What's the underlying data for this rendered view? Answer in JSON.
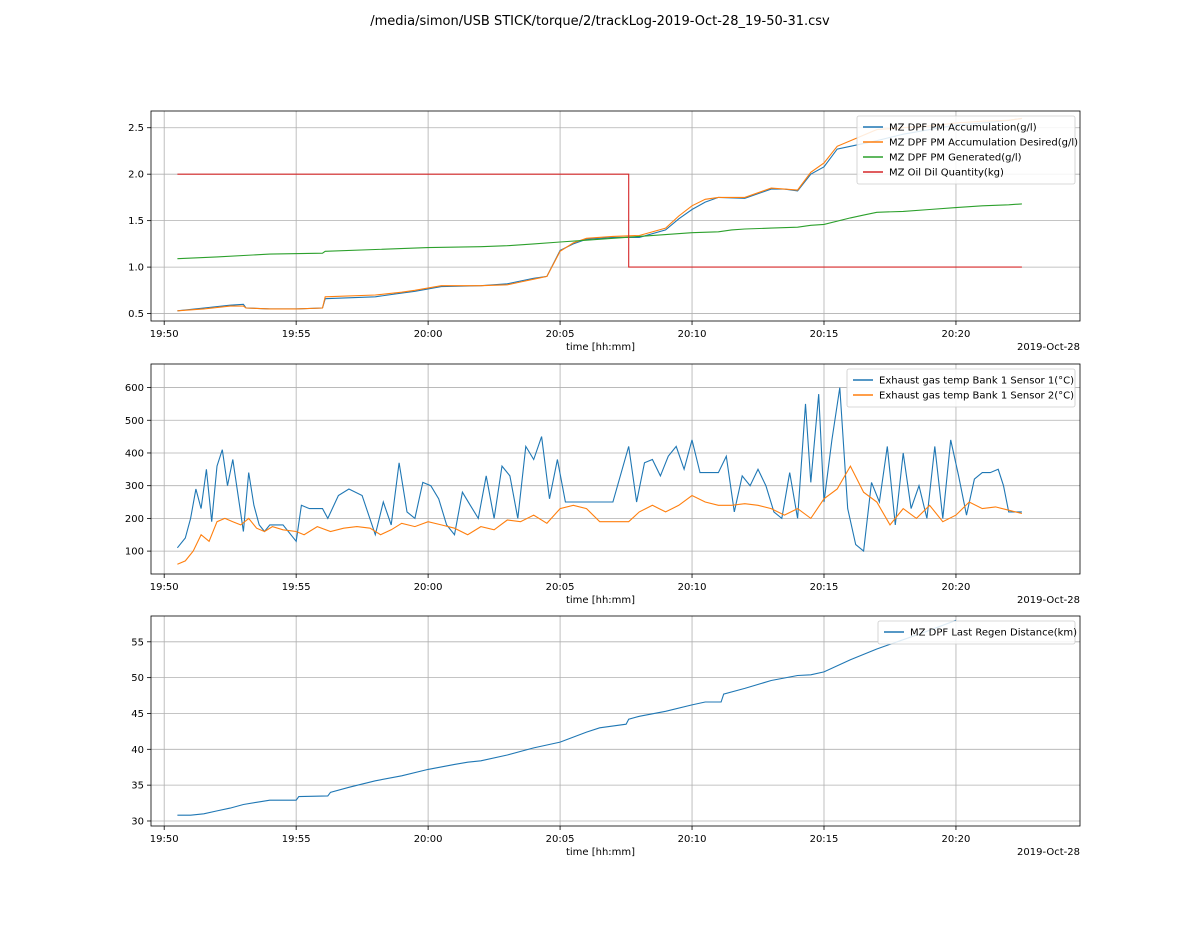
{
  "figure": {
    "title": "/media/simon/USB STICK/torque/2/trackLog-2019-Oct-28_19-50-31.csv"
  },
  "chart_data": [
    {
      "type": "line",
      "xlabel": "time [hh:mm]",
      "x_offset_label": "2019-Oct-28",
      "x_ticks": [
        "19:50",
        "19:55",
        "20:00",
        "20:05",
        "20:10",
        "20:15",
        "20:20"
      ],
      "x_tick_minutes": [
        0,
        5,
        10,
        15,
        20,
        25,
        30
      ],
      "xlim": [
        -0.5,
        34.7
      ],
      "ylim": [
        0.42,
        2.68
      ],
      "y_ticks": [
        0.5,
        1.0,
        1.5,
        2.0,
        2.5
      ],
      "y_tick_labels": [
        "0.5",
        "1.0",
        "1.5",
        "2.0",
        "2.5"
      ],
      "grid": true,
      "legend": "top-right",
      "series": [
        {
          "name": "MZ DPF PM Accumulation(g/l)",
          "color": "#1f77b4",
          "x": [
            0.5,
            1.5,
            2.5,
            3,
            3.1,
            4,
            5,
            6,
            6.1,
            8,
            9,
            9.5,
            10.5,
            12,
            13,
            13.5,
            14,
            14.5,
            15,
            15.5,
            16,
            17,
            18,
            19,
            19.5,
            20,
            20.5,
            21,
            22,
            23,
            23.5,
            24,
            24.5,
            25,
            25.5,
            26,
            27,
            28,
            29,
            30,
            31,
            32,
            32.5
          ],
          "y": [
            0.53,
            0.56,
            0.59,
            0.6,
            0.56,
            0.55,
            0.55,
            0.56,
            0.66,
            0.68,
            0.72,
            0.74,
            0.79,
            0.8,
            0.82,
            0.85,
            0.88,
            0.9,
            1.18,
            1.25,
            1.3,
            1.32,
            1.32,
            1.4,
            1.52,
            1.62,
            1.7,
            1.75,
            1.74,
            1.84,
            1.84,
            1.82,
            2.0,
            2.08,
            2.27,
            2.3,
            2.36,
            2.43,
            2.48,
            2.53,
            2.55,
            2.58,
            2.6
          ]
        },
        {
          "name": "MZ DPF PM Accumulation Desired(g/l)",
          "color": "#ff7f0e",
          "x": [
            0.5,
            1.5,
            2.5,
            3,
            3.1,
            4,
            5,
            6,
            6.1,
            8,
            9,
            9.5,
            10.5,
            12,
            13,
            13.5,
            14,
            14.5,
            15,
            15.5,
            16,
            17,
            18,
            19,
            19.5,
            20,
            20.5,
            21,
            22,
            23,
            23.5,
            24,
            24.5,
            25,
            25.5,
            26,
            27,
            28,
            29,
            30,
            31,
            32,
            32.5
          ],
          "y": [
            0.53,
            0.55,
            0.58,
            0.58,
            0.56,
            0.55,
            0.55,
            0.56,
            0.68,
            0.7,
            0.73,
            0.75,
            0.8,
            0.8,
            0.81,
            0.84,
            0.87,
            0.9,
            1.17,
            1.26,
            1.31,
            1.33,
            1.34,
            1.42,
            1.55,
            1.66,
            1.73,
            1.75,
            1.75,
            1.85,
            1.84,
            1.83,
            2.02,
            2.12,
            2.3,
            2.36,
            2.48,
            2.5,
            2.52,
            2.55,
            2.57,
            2.58,
            2.6
          ]
        },
        {
          "name": "MZ DPF PM Generated(g/l)",
          "color": "#2ca02c",
          "x": [
            0.5,
            2,
            4,
            6,
            6.1,
            8,
            10,
            12,
            13,
            14,
            15,
            16,
            17,
            18,
            19,
            20,
            21,
            21.5,
            22,
            23,
            24,
            24.5,
            25,
            26,
            26.5,
            27,
            28,
            29,
            30,
            31,
            32,
            32.5
          ],
          "y": [
            1.09,
            1.11,
            1.14,
            1.15,
            1.17,
            1.19,
            1.21,
            1.22,
            1.23,
            1.25,
            1.27,
            1.29,
            1.31,
            1.33,
            1.35,
            1.37,
            1.38,
            1.4,
            1.41,
            1.42,
            1.43,
            1.45,
            1.46,
            1.53,
            1.56,
            1.59,
            1.6,
            1.62,
            1.64,
            1.66,
            1.67,
            1.68
          ]
        },
        {
          "name": "MZ Oil Dil Quantity(kg)",
          "color": "#d62728",
          "x": [
            0.5,
            17.6,
            17.6,
            32.5
          ],
          "y": [
            2.0,
            2.0,
            1.0,
            1.0
          ]
        }
      ]
    },
    {
      "type": "line",
      "xlabel": "time [hh:mm]",
      "x_offset_label": "2019-Oct-28",
      "x_ticks": [
        "19:50",
        "19:55",
        "20:00",
        "20:05",
        "20:10",
        "20:15",
        "20:20"
      ],
      "x_tick_minutes": [
        0,
        5,
        10,
        15,
        20,
        25,
        30
      ],
      "xlim": [
        -0.5,
        34.7
      ],
      "ylim": [
        30,
        672
      ],
      "y_ticks": [
        100,
        200,
        300,
        400,
        500,
        600
      ],
      "y_tick_labels": [
        "100",
        "200",
        "300",
        "400",
        "500",
        "600"
      ],
      "grid": true,
      "legend": "top-right",
      "series": [
        {
          "name": "Exhaust gas temp Bank 1 Sensor 1(°C)",
          "color": "#1f77b4",
          "x": [
            0.5,
            0.8,
            1.0,
            1.2,
            1.4,
            1.6,
            1.8,
            2.0,
            2.2,
            2.4,
            2.6,
            2.8,
            3.0,
            3.2,
            3.4,
            3.6,
            3.8,
            4.0,
            4.5,
            5.0,
            5.2,
            5.5,
            6.0,
            6.2,
            6.6,
            7.0,
            7.5,
            8.0,
            8.3,
            8.6,
            8.9,
            9.2,
            9.5,
            9.8,
            10.1,
            10.4,
            10.7,
            11.0,
            11.3,
            11.6,
            11.9,
            12.2,
            12.5,
            12.8,
            13.1,
            13.4,
            13.7,
            14.0,
            14.3,
            14.6,
            14.9,
            15.2,
            15.5,
            15.8,
            16.1,
            16.4,
            16.7,
            17.0,
            17.6,
            17.9,
            18.2,
            18.5,
            18.8,
            19.1,
            19.4,
            19.7,
            20.0,
            20.3,
            21.0,
            21.3,
            21.6,
            21.9,
            22.2,
            22.5,
            22.8,
            23.1,
            23.4,
            23.7,
            24.0,
            24.3,
            24.5,
            24.8,
            25.0,
            25.3,
            25.6,
            25.9,
            26.2,
            26.5,
            26.8,
            27.1,
            27.4,
            27.7,
            28.0,
            28.3,
            28.6,
            28.9,
            29.2,
            29.5,
            29.8,
            30.1,
            30.4,
            30.7,
            31.0,
            31.3,
            31.6,
            31.8,
            32.0,
            32.5
          ],
          "y": [
            110,
            140,
            200,
            290,
            230,
            350,
            190,
            360,
            410,
            300,
            380,
            270,
            160,
            340,
            240,
            180,
            160,
            180,
            180,
            130,
            240,
            230,
            230,
            200,
            270,
            290,
            270,
            150,
            250,
            180,
            370,
            220,
            200,
            310,
            300,
            260,
            180,
            150,
            280,
            240,
            200,
            330,
            200,
            360,
            330,
            200,
            420,
            380,
            450,
            260,
            380,
            250,
            250,
            250,
            250,
            250,
            250,
            250,
            420,
            250,
            370,
            380,
            330,
            390,
            420,
            350,
            440,
            340,
            340,
            390,
            220,
            330,
            300,
            350,
            300,
            220,
            200,
            340,
            200,
            550,
            310,
            580,
            250,
            440,
            600,
            230,
            120,
            100,
            310,
            250,
            420,
            180,
            400,
            230,
            300,
            200,
            420,
            200,
            440,
            330,
            210,
            320,
            340,
            340,
            350,
            300,
            220,
            220
          ]
        },
        {
          "name": "Exhaust gas temp Bank 1 Sensor 2(°C)",
          "color": "#ff7f0e",
          "x": [
            0.5,
            0.8,
            1.1,
            1.4,
            1.7,
            2.0,
            2.3,
            2.6,
            2.9,
            3.2,
            3.5,
            3.8,
            4.1,
            4.5,
            5.0,
            5.3,
            5.8,
            6.3,
            6.8,
            7.3,
            7.8,
            8.2,
            8.6,
            9.0,
            9.5,
            10.0,
            10.5,
            11.0,
            11.5,
            12.0,
            12.5,
            13.0,
            13.5,
            14.0,
            14.5,
            15.0,
            15.5,
            16.0,
            16.5,
            17.0,
            17.6,
            18.0,
            18.5,
            19.0,
            19.5,
            20.0,
            20.5,
            21.0,
            21.5,
            22.0,
            22.5,
            23.0,
            23.5,
            24.0,
            24.5,
            25.0,
            25.5,
            26.0,
            26.5,
            27.0,
            27.5,
            28.0,
            28.5,
            29.0,
            29.5,
            30.0,
            30.5,
            31.0,
            31.5,
            32.0,
            32.5
          ],
          "y": [
            60,
            70,
            100,
            150,
            130,
            190,
            200,
            190,
            180,
            200,
            170,
            160,
            175,
            165,
            160,
            150,
            175,
            160,
            170,
            175,
            170,
            150,
            165,
            185,
            175,
            190,
            180,
            170,
            150,
            175,
            165,
            195,
            190,
            210,
            185,
            230,
            240,
            230,
            190,
            190,
            190,
            220,
            240,
            220,
            240,
            270,
            250,
            240,
            240,
            245,
            240,
            230,
            210,
            230,
            200,
            260,
            290,
            360,
            280,
            250,
            180,
            230,
            200,
            240,
            190,
            210,
            250,
            230,
            235,
            225,
            215
          ]
        }
      ]
    },
    {
      "type": "line",
      "xlabel": "time [hh:mm]",
      "x_offset_label": "2019-Oct-28",
      "x_ticks": [
        "19:50",
        "19:55",
        "20:00",
        "20:05",
        "20:10",
        "20:15",
        "20:20"
      ],
      "x_tick_minutes": [
        0,
        5,
        10,
        15,
        20,
        25,
        30
      ],
      "xlim": [
        -0.5,
        34.7
      ],
      "ylim": [
        29.3,
        58.6
      ],
      "y_ticks": [
        30,
        35,
        40,
        45,
        50,
        55
      ],
      "y_tick_labels": [
        "30",
        "35",
        "40",
        "45",
        "50",
        "55"
      ],
      "grid": true,
      "legend": "top-right",
      "series": [
        {
          "name": "MZ DPF Last Regen Distance(km)",
          "color": "#1f77b4",
          "x": [
            0.5,
            1.0,
            1.5,
            2.0,
            2.5,
            3.0,
            3.5,
            4.0,
            4.5,
            5.0,
            5.1,
            6.2,
            6.3,
            7.0,
            8.0,
            9.0,
            10.0,
            11.0,
            11.5,
            12.0,
            13.0,
            14.0,
            15.0,
            16.0,
            16.5,
            17.5,
            17.6,
            18.0,
            19.0,
            20.0,
            20.5,
            21.1,
            21.2,
            22.0,
            23.0,
            24.0,
            24.5,
            25.0,
            26.0,
            27.0,
            28.0,
            29.0,
            30.0
          ],
          "y": [
            30.8,
            30.8,
            31.0,
            31.4,
            31.8,
            32.3,
            32.6,
            32.9,
            32.9,
            32.9,
            33.4,
            33.5,
            34.0,
            34.7,
            35.6,
            36.3,
            37.2,
            37.9,
            38.2,
            38.4,
            39.2,
            40.2,
            41.0,
            42.4,
            43.0,
            43.5,
            44.2,
            44.6,
            45.3,
            46.2,
            46.6,
            46.6,
            47.7,
            48.5,
            49.6,
            50.3,
            50.4,
            50.8,
            52.5,
            54.0,
            55.3,
            56.6,
            58.0
          ]
        }
      ]
    }
  ]
}
